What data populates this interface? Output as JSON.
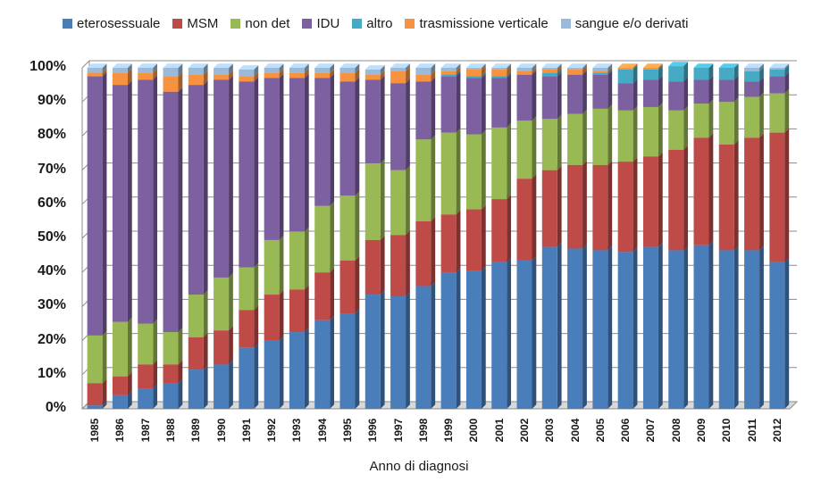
{
  "chart_data": {
    "type": "bar",
    "stacked": true,
    "percent": true,
    "title": "",
    "xlabel": "Anno di diagnosi",
    "ylabel": "",
    "ylim": [
      0,
      100
    ],
    "yticks": [
      "0%",
      "10%",
      "20%",
      "30%",
      "40%",
      "50%",
      "60%",
      "70%",
      "80%",
      "90%",
      "100%"
    ],
    "grid": true,
    "legend_position": "top",
    "categories": [
      "1985",
      "1986",
      "1987",
      "1988",
      "1989",
      "1990",
      "1991",
      "1992",
      "1993",
      "1994",
      "1995",
      "1996",
      "1997",
      "1998",
      "1999",
      "2000",
      "2001",
      "2002",
      "2003",
      "2004",
      "2005",
      "2006",
      "2007",
      "2008",
      "2009",
      "2010",
      "2011",
      "2012"
    ],
    "series": [
      {
        "name": "eterosessuale",
        "color": "#4a7ebb",
        "values": [
          1,
          4,
          6,
          7.5,
          11.5,
          13,
          18,
          20,
          22.5,
          26,
          28,
          33.5,
          33,
          36,
          40,
          40.5,
          43,
          43.5,
          47.5,
          47,
          46.5,
          46,
          47.5,
          46.5,
          48,
          46.5,
          46.5,
          43
        ]
      },
      {
        "name": "MSM",
        "color": "#be4b48",
        "values": [
          6.5,
          5.5,
          7,
          5.5,
          9.5,
          10,
          11,
          13.5,
          12.5,
          14,
          15.5,
          16,
          18,
          19,
          17,
          18,
          18.5,
          24,
          22.5,
          24.5,
          25,
          26.5,
          26.5,
          29.5,
          31.5,
          31,
          33,
          38
        ]
      },
      {
        "name": "non det",
        "color": "#98b954",
        "values": [
          14,
          16,
          12,
          9.5,
          12.5,
          15.5,
          12.5,
          16,
          17,
          19.5,
          19,
          22.5,
          19,
          24,
          24,
          22,
          21,
          17,
          15,
          15,
          16.5,
          15,
          14.5,
          11.5,
          10,
          12.5,
          12,
          11.5
        ]
      },
      {
        "name": "IDU",
        "color": "#7d60a0",
        "values": [
          76,
          69.5,
          71.5,
          70.5,
          61.5,
          58,
          54.5,
          47.5,
          45,
          37.5,
          33.5,
          24.5,
          25.5,
          17,
          16.5,
          16.5,
          14.5,
          13.5,
          12.5,
          11.5,
          10,
          8,
          8,
          8.5,
          7,
          6.5,
          4.5,
          5
        ]
      },
      {
        "name": "altro",
        "color": "#46aac5",
        "values": [
          0,
          0,
          0,
          0,
          0,
          0,
          0,
          0,
          0,
          0,
          0,
          0,
          0,
          0,
          0.5,
          0.5,
          0.5,
          0,
          1,
          0,
          0.5,
          4,
          3,
          4.5,
          3.5,
          3.5,
          3,
          2
        ]
      },
      {
        "name": "trasmissione verticale",
        "color": "#f69240",
        "values": [
          1,
          3.5,
          2,
          4.5,
          3,
          1.5,
          1.5,
          1.5,
          1.5,
          1.5,
          2.5,
          1.5,
          3.5,
          2,
          1,
          2,
          2,
          1,
          1,
          1.5,
          0.5,
          0.5,
          0.5,
          0,
          0,
          0,
          0,
          0
        ]
      },
      {
        "name": "sangue e/o derivati",
        "color": "#9bbad8",
        "values": [
          1.5,
          1.5,
          1.5,
          2.5,
          2,
          2,
          2,
          1.5,
          1.5,
          1.5,
          1.5,
          1.5,
          1,
          2,
          1,
          0.5,
          0.5,
          1,
          0.5,
          0.5,
          1,
          0,
          0,
          0,
          0,
          0,
          1,
          0.5
        ]
      }
    ]
  }
}
